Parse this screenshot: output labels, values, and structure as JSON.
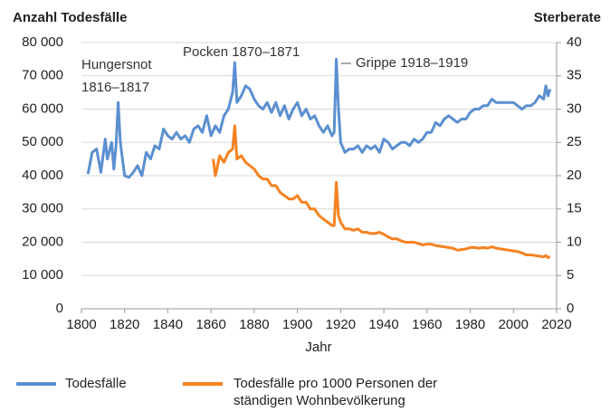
{
  "chart_data": {
    "type": "line",
    "y_label": "Anzahl Todesfälle",
    "y2_label": "Sterberate",
    "x_label": "Jahr",
    "xlim": [
      1800,
      2020
    ],
    "xticks": [
      1800,
      1820,
      1840,
      1860,
      1880,
      1900,
      1920,
      1940,
      1960,
      1980,
      2000,
      2020
    ],
    "ylim": [
      0,
      80000
    ],
    "yticks": [
      0,
      {
        "value": 10000,
        "label": "10 000"
      },
      {
        "value": 20000,
        "label": "20 000"
      },
      {
        "value": 30000,
        "label": "30 000"
      },
      {
        "value": 40000,
        "label": "40 000"
      },
      {
        "value": 50000,
        "label": "50 000"
      },
      {
        "value": 60000,
        "label": "60 000"
      },
      {
        "value": 70000,
        "label": "70 000"
      },
      {
        "value": 80000,
        "label": "80 000"
      }
    ],
    "y2lim": [
      0,
      40
    ],
    "y2ticks": [
      0,
      5,
      10,
      15,
      20,
      25,
      30,
      35,
      40
    ],
    "grid": true,
    "annotations": [
      {
        "text": [
          "Hungersnot",
          "1816–1817"
        ]
      },
      {
        "text": [
          "Pocken 1870–1871"
        ]
      },
      {
        "text": [
          "Grippe 1918–1919"
        ]
      }
    ],
    "series": [
      {
        "name": "Todesfälle",
        "color": "#5b8fd0",
        "x": [
          1803,
          1805,
          1807,
          1809,
          1811,
          1812,
          1814,
          1815,
          1816,
          1817,
          1818,
          1819,
          1820,
          1822,
          1824,
          1826,
          1828,
          1830,
          1832,
          1834,
          1836,
          1838,
          1840,
          1842,
          1844,
          1846,
          1848,
          1850,
          1852,
          1854,
          1856,
          1858,
          1860,
          1862,
          1864,
          1866,
          1868,
          1870,
          1871,
          1872,
          1874,
          1876,
          1878,
          1880,
          1882,
          1884,
          1886,
          1888,
          1890,
          1892,
          1894,
          1896,
          1898,
          1900,
          1902,
          1904,
          1906,
          1908,
          1910,
          1912,
          1914,
          1916,
          1917,
          1918,
          1919,
          1920,
          1922,
          1924,
          1926,
          1928,
          1930,
          1932,
          1934,
          1936,
          1938,
          1940,
          1942,
          1944,
          1946,
          1948,
          1950,
          1952,
          1954,
          1956,
          1958,
          1960,
          1962,
          1964,
          1966,
          1968,
          1970,
          1972,
          1974,
          1976,
          1978,
          1980,
          1982,
          1984,
          1986,
          1988,
          1990,
          1992,
          1994,
          1996,
          1998,
          2000,
          2002,
          2004,
          2006,
          2008,
          2010,
          2012,
          2014,
          2015,
          2016,
          2017
        ],
        "values": [
          40500,
          47000,
          48000,
          41000,
          51000,
          45000,
          50000,
          42000,
          49000,
          62000,
          50000,
          45000,
          40000,
          39500,
          41000,
          43000,
          40000,
          47000,
          45000,
          49000,
          48000,
          54000,
          52000,
          51000,
          53000,
          51000,
          52000,
          50000,
          54000,
          55000,
          53000,
          58000,
          52000,
          55000,
          53000,
          58000,
          60000,
          65000,
          74000,
          62000,
          64000,
          67000,
          66000,
          63000,
          61000,
          60000,
          62000,
          59000,
          62000,
          58000,
          61000,
          57000,
          60000,
          62000,
          58000,
          60000,
          57000,
          58000,
          55000,
          53000,
          55000,
          52000,
          53000,
          75000,
          60000,
          50000,
          47000,
          48000,
          48000,
          49000,
          47000,
          49000,
          48000,
          49000,
          47000,
          51000,
          50000,
          48000,
          49000,
          50000,
          50000,
          49000,
          51000,
          50000,
          51000,
          53000,
          53000,
          56000,
          55000,
          57000,
          58000,
          57000,
          56000,
          57000,
          57000,
          59000,
          60000,
          60000,
          61000,
          61000,
          63000,
          62000,
          62000,
          62000,
          62000,
          62000,
          61000,
          60000,
          61000,
          61000,
          62000,
          64000,
          63000,
          67000,
          64000,
          66000
        ]
      },
      {
        "name": "Todesfälle pro 1000 Personen der ständigen Wohnbevölkerung",
        "color": "#f58220",
        "axis": "y2",
        "x": [
          1861,
          1862,
          1864,
          1866,
          1868,
          1870,
          1871,
          1872,
          1874,
          1876,
          1878,
          1880,
          1882,
          1884,
          1886,
          1888,
          1890,
          1892,
          1894,
          1896,
          1898,
          1900,
          1902,
          1904,
          1906,
          1908,
          1910,
          1912,
          1914,
          1916,
          1917,
          1918,
          1919,
          1920,
          1922,
          1924,
          1926,
          1928,
          1930,
          1932,
          1934,
          1936,
          1938,
          1940,
          1942,
          1944,
          1946,
          1948,
          1950,
          1952,
          1954,
          1956,
          1958,
          1960,
          1962,
          1964,
          1966,
          1968,
          1970,
          1972,
          1974,
          1976,
          1978,
          1980,
          1982,
          1984,
          1986,
          1988,
          1990,
          1992,
          1994,
          1996,
          1998,
          2000,
          2002,
          2004,
          2006,
          2008,
          2010,
          2012,
          2014,
          2015,
          2016,
          2017
        ],
        "values": [
          22.5,
          20,
          23,
          22,
          23.5,
          24,
          27.5,
          22.5,
          23,
          22,
          21.5,
          21,
          20,
          19.5,
          19.5,
          18.5,
          18.5,
          17.5,
          17,
          16.5,
          16.5,
          17,
          16,
          16,
          15,
          15,
          14,
          13.5,
          13,
          12.5,
          12.5,
          19,
          14,
          13,
          12,
          12,
          11.8,
          12,
          11.5,
          11.5,
          11.3,
          11.3,
          11.5,
          11.2,
          10.8,
          10.5,
          10.5,
          10.2,
          10,
          10,
          10,
          9.8,
          9.6,
          9.7,
          9.7,
          9.5,
          9.4,
          9.3,
          9.2,
          9.1,
          8.8,
          8.9,
          9,
          9.2,
          9.2,
          9.1,
          9.2,
          9.1,
          9.3,
          9.1,
          9,
          8.9,
          8.8,
          8.7,
          8.6,
          8.4,
          8.1,
          8.1,
          8,
          7.9,
          7.8,
          8,
          7.7,
          7.8
        ]
      }
    ]
  }
}
